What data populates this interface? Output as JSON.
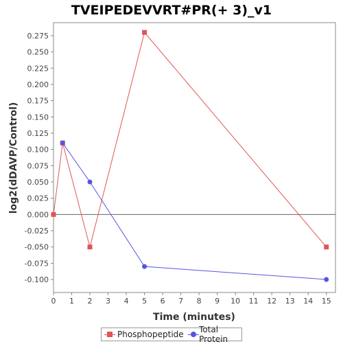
{
  "chart_data": {
    "type": "line",
    "title": "TVEIPEDEVVRT#PR(+ 3)_v1",
    "xlabel": "Time (minutes)",
    "ylabel": "log2(dDAVP/Control)",
    "xlim": [
      0,
      15.5
    ],
    "ylim": [
      -0.12,
      0.295
    ],
    "x_ticks": [
      0,
      1,
      2,
      3,
      4,
      5,
      6,
      7,
      8,
      9,
      10,
      11,
      12,
      13,
      14,
      15
    ],
    "y_ticks": [
      -0.1,
      -0.075,
      -0.05,
      -0.025,
      0.0,
      0.025,
      0.05,
      0.075,
      0.1,
      0.125,
      0.15,
      0.175,
      0.2,
      0.225,
      0.25,
      0.275
    ],
    "y_tick_labels": [
      "-0.100",
      "-0.075",
      "-0.050",
      "-0.025",
      "0.000",
      "0.025",
      "0.050",
      "0.075",
      "0.100",
      "0.125",
      "0.150",
      "0.175",
      "0.200",
      "0.225",
      "0.250",
      "0.275"
    ],
    "zero_line": true,
    "grid": false,
    "legend_position": "bottom-center",
    "series": [
      {
        "name": "Phosphopeptide",
        "color": "#e05555",
        "marker": "square",
        "x": [
          0,
          0.5,
          2,
          5,
          15
        ],
        "values": [
          0.0,
          0.11,
          -0.05,
          0.28,
          -0.05
        ]
      },
      {
        "name": "Total Protein",
        "color": "#5555e0",
        "marker": "circle",
        "x": [
          0.5,
          2,
          5,
          15
        ],
        "values": [
          0.11,
          0.05,
          -0.08,
          -0.1
        ]
      }
    ]
  }
}
